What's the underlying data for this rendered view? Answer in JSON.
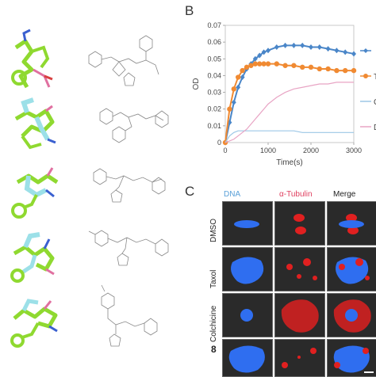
{
  "panels": {
    "b_letter": "B",
    "c_letter": "C"
  },
  "chart_data": {
    "type": "line",
    "xlabel": "Time(s)",
    "ylabel": "OD",
    "xlim": [
      0,
      3000
    ],
    "ylim": [
      0,
      0.07
    ],
    "x_ticks": [
      "0",
      "1000",
      "2000",
      "3000"
    ],
    "y_ticks": [
      "0",
      "0.01",
      "0.02",
      "0.03",
      "0.04",
      "0.05",
      "0.06",
      "0.07"
    ],
    "legend_placement": "right",
    "series": [
      {
        "name": "",
        "legend_text": "",
        "color": "#4a86c8",
        "marker": "diamond",
        "x": [
          0,
          100,
          200,
          300,
          400,
          500,
          600,
          700,
          800,
          900,
          1000,
          1200,
          1400,
          1600,
          1800,
          2000,
          2200,
          2400,
          2600,
          2800,
          3000
        ],
        "y": [
          0.0,
          0.012,
          0.024,
          0.033,
          0.039,
          0.044,
          0.047,
          0.05,
          0.052,
          0.054,
          0.055,
          0.057,
          0.058,
          0.058,
          0.058,
          0.057,
          0.057,
          0.056,
          0.055,
          0.054,
          0.053
        ]
      },
      {
        "name": "T",
        "legend_text": "T",
        "color": "#f08a32",
        "marker": "circle",
        "x": [
          0,
          100,
          200,
          300,
          400,
          500,
          600,
          700,
          800,
          900,
          1000,
          1200,
          1400,
          1600,
          1800,
          2000,
          2200,
          2400,
          2600,
          2800,
          3000
        ],
        "y": [
          0.0,
          0.02,
          0.032,
          0.039,
          0.043,
          0.045,
          0.046,
          0.047,
          0.047,
          0.047,
          0.047,
          0.047,
          0.046,
          0.046,
          0.045,
          0.045,
          0.044,
          0.044,
          0.043,
          0.043,
          0.043
        ]
      },
      {
        "name": "C",
        "legend_text": "C",
        "color": "#9cc7e6",
        "marker": "none",
        "x": [
          0,
          100,
          200,
          300,
          400,
          500,
          600,
          700,
          800,
          1000,
          1200,
          1400,
          1600,
          1800,
          2000,
          2200,
          2400,
          2600,
          2800,
          3000
        ],
        "y": [
          0.0,
          0.004,
          0.006,
          0.007,
          0.007,
          0.007,
          0.007,
          0.007,
          0.007,
          0.007,
          0.007,
          0.007,
          0.007,
          0.006,
          0.006,
          0.006,
          0.006,
          0.006,
          0.006,
          0.006
        ]
      },
      {
        "name": "D",
        "legend_text": "D",
        "color": "#e8a4c4",
        "marker": "none",
        "x": [
          0,
          100,
          200,
          300,
          400,
          500,
          600,
          700,
          800,
          900,
          1000,
          1200,
          1400,
          1600,
          1800,
          2000,
          2200,
          2400,
          2600,
          2800,
          3000
        ],
        "y": [
          0.0,
          0.001,
          0.002,
          0.004,
          0.006,
          0.008,
          0.011,
          0.014,
          0.017,
          0.02,
          0.023,
          0.027,
          0.03,
          0.032,
          0.033,
          0.034,
          0.035,
          0.035,
          0.036,
          0.036,
          0.036
        ]
      }
    ]
  },
  "micro": {
    "columns": [
      {
        "label": "DNA",
        "color": "#5aa0d8"
      },
      {
        "label": "α-Tubulin",
        "color": "#e04060"
      },
      {
        "label": "Merge",
        "color": "#222222"
      }
    ],
    "rows": [
      {
        "label": "DMSO",
        "bold": false
      },
      {
        "label": "Taxol",
        "bold": false
      },
      {
        "label": "Colchicine",
        "bold": false
      },
      {
        "label": "8",
        "bold": true
      }
    ]
  }
}
